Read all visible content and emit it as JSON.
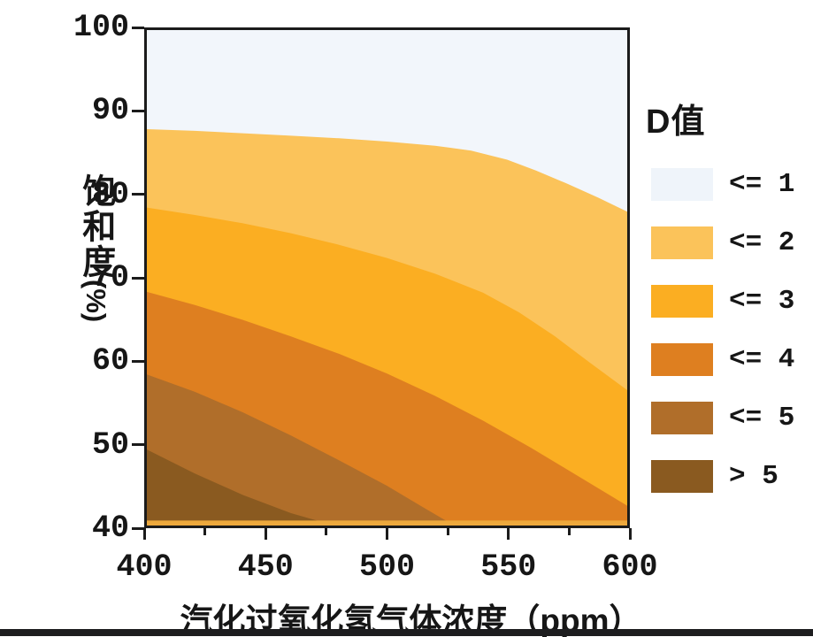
{
  "chart_data": {
    "type": "filled-contour",
    "xlabel": "汽化过氧化氢气体浓度（ppm）",
    "ylabel": "饱和度",
    "ylabel_unit": "(%)",
    "xlim": [
      400,
      600
    ],
    "ylim": [
      40,
      100
    ],
    "x_ticks": [
      400,
      450,
      500,
      550,
      600
    ],
    "x_minor_ticks": [
      425,
      475,
      525,
      575
    ],
    "y_ticks": [
      100,
      90,
      80,
      70,
      60,
      50,
      40
    ],
    "grid": false,
    "axis_color": "#1b1b1b",
    "background_region": {
      "label": "<= 1",
      "color": "#f2f6fb"
    },
    "bands": [
      {
        "label": "<= 2",
        "color": "#fbc35a",
        "boundary_d_value": 1,
        "points": [
          [
            400,
            88
          ],
          [
            420,
            87.8
          ],
          [
            440,
            87.5
          ],
          [
            460,
            87.2
          ],
          [
            480,
            86.9
          ],
          [
            500,
            86.5
          ],
          [
            520,
            86.0
          ],
          [
            535,
            85.4
          ],
          [
            550,
            84.3
          ],
          [
            562,
            83.0
          ],
          [
            575,
            81.4
          ],
          [
            588,
            79.7
          ],
          [
            600,
            78.0
          ]
        ]
      },
      {
        "label": "<= 3",
        "color": "#fbae22",
        "boundary_d_value": 2,
        "points": [
          [
            400,
            78.5
          ],
          [
            420,
            77.6
          ],
          [
            440,
            76.6
          ],
          [
            460,
            75.4
          ],
          [
            480,
            74.0
          ],
          [
            500,
            72.4
          ],
          [
            520,
            70.5
          ],
          [
            540,
            68.2
          ],
          [
            555,
            65.8
          ],
          [
            570,
            62.9
          ],
          [
            585,
            59.6
          ],
          [
            600,
            56.4
          ]
        ]
      },
      {
        "label": "<= 4",
        "color": "#de7f20",
        "boundary_d_value": 3,
        "points": [
          [
            400,
            68.3
          ],
          [
            420,
            66.7
          ],
          [
            440,
            64.9
          ],
          [
            460,
            62.9
          ],
          [
            480,
            60.8
          ],
          [
            500,
            58.4
          ],
          [
            520,
            55.7
          ],
          [
            540,
            52.7
          ],
          [
            560,
            49.4
          ],
          [
            580,
            45.9
          ],
          [
            600,
            42.4
          ]
        ]
      },
      {
        "label": "<= 5",
        "color": "#b06e2a",
        "boundary_d_value": 4,
        "points": [
          [
            400,
            58.3
          ],
          [
            420,
            56.2
          ],
          [
            440,
            53.7
          ],
          [
            460,
            50.9
          ],
          [
            480,
            47.9
          ],
          [
            500,
            44.8
          ],
          [
            515,
            42.2
          ],
          [
            528,
            40
          ]
        ]
      },
      {
        "label": "> 5",
        "color": "#8a5a20",
        "boundary_d_value": 5,
        "points": [
          [
            400,
            49.2
          ],
          [
            420,
            46.3
          ],
          [
            440,
            43.7
          ],
          [
            460,
            41.5
          ],
          [
            478,
            40
          ]
        ]
      }
    ],
    "bottom_edge_strip": {
      "color": "#eda93d",
      "sat_top": 40.6
    },
    "legend": {
      "title": "D值",
      "position": "right",
      "items": [
        {
          "label": "<= 1",
          "color": "#eff4fa"
        },
        {
          "label": "<= 2",
          "color": "#fbc35a"
        },
        {
          "label": "<= 3",
          "color": "#fbae22"
        },
        {
          "label": "<= 4",
          "color": "#de7f20"
        },
        {
          "label": "<= 5",
          "color": "#b06e2a"
        },
        {
          "label": "> 5",
          "color": "#8a5a20"
        }
      ]
    }
  }
}
